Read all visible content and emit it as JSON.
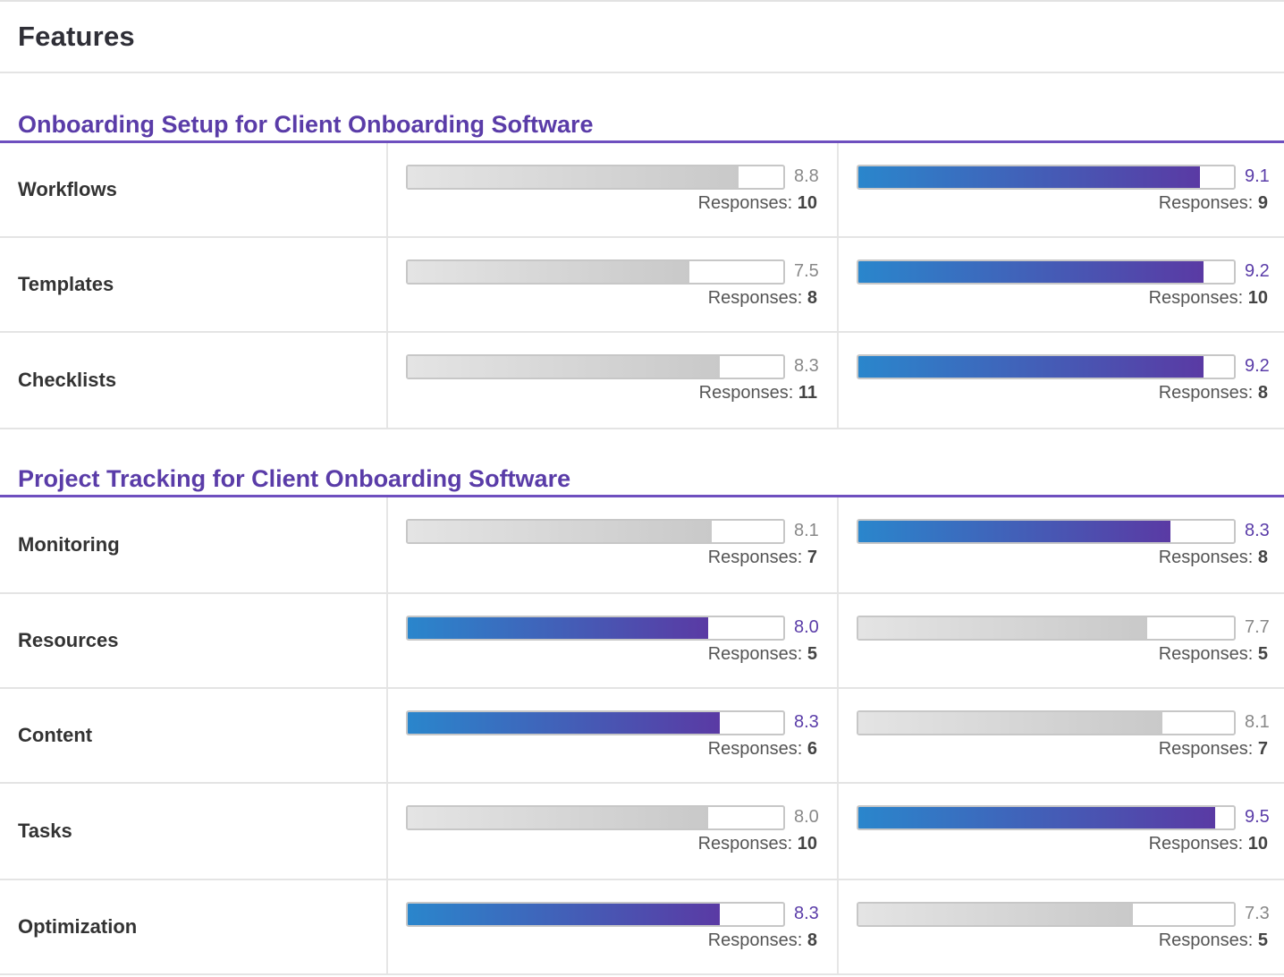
{
  "title": "Features",
  "responses_label": "Responses:",
  "sections": [
    {
      "title": "Onboarding Setup for Client Onboarding Software",
      "rows": [
        {
          "label": "Workflows",
          "left": {
            "score": "8.8",
            "value": 8.8,
            "responses": "10",
            "style": "gray"
          },
          "right": {
            "score": "9.1",
            "value": 9.1,
            "responses": "9",
            "style": "color"
          }
        },
        {
          "label": "Templates",
          "left": {
            "score": "7.5",
            "value": 7.5,
            "responses": "8",
            "style": "gray"
          },
          "right": {
            "score": "9.2",
            "value": 9.2,
            "responses": "10",
            "style": "color"
          }
        },
        {
          "label": "Checklists",
          "left": {
            "score": "8.3",
            "value": 8.3,
            "responses": "11",
            "style": "gray"
          },
          "right": {
            "score": "9.2",
            "value": 9.2,
            "responses": "8",
            "style": "color"
          }
        }
      ]
    },
    {
      "title": "Project Tracking for Client Onboarding Software",
      "rows": [
        {
          "label": "Monitoring",
          "left": {
            "score": "8.1",
            "value": 8.1,
            "responses": "7",
            "style": "gray"
          },
          "right": {
            "score": "8.3",
            "value": 8.3,
            "responses": "8",
            "style": "color"
          }
        },
        {
          "label": "Resources",
          "left": {
            "score": "8.0",
            "value": 8.0,
            "responses": "5",
            "style": "color"
          },
          "right": {
            "score": "7.7",
            "value": 7.7,
            "responses": "5",
            "style": "gray"
          }
        },
        {
          "label": "Content",
          "left": {
            "score": "8.3",
            "value": 8.3,
            "responses": "6",
            "style": "color"
          },
          "right": {
            "score": "8.1",
            "value": 8.1,
            "responses": "7",
            "style": "gray"
          }
        },
        {
          "label": "Tasks",
          "left": {
            "score": "8.0",
            "value": 8.0,
            "responses": "10",
            "style": "gray"
          },
          "right": {
            "score": "9.5",
            "value": 9.5,
            "responses": "10",
            "style": "color"
          }
        },
        {
          "label": "Optimization",
          "left": {
            "score": "8.3",
            "value": 8.3,
            "responses": "8",
            "style": "color"
          },
          "right": {
            "score": "7.3",
            "value": 7.3,
            "responses": "5",
            "style": "gray"
          }
        }
      ]
    }
  ]
}
